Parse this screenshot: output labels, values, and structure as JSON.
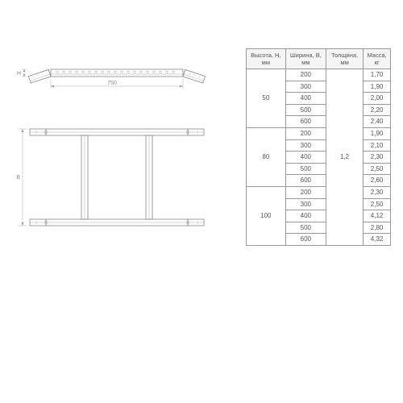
{
  "table": {
    "headers": [
      "Высота,\nH, мм",
      "Ширина,\nB, мм",
      "Толщина,\nмм",
      "Масса,\nкг"
    ],
    "thickness": "1,2",
    "groups": [
      {
        "height": "50",
        "rows": [
          {
            "width": "200",
            "mass": "1,70"
          },
          {
            "width": "300",
            "mass": "1,90"
          },
          {
            "width": "400",
            "mass": "2,00"
          },
          {
            "width": "500",
            "mass": "2,20"
          },
          {
            "width": "600",
            "mass": "2,40"
          }
        ]
      },
      {
        "height": "80",
        "rows": [
          {
            "width": "200",
            "mass": "1,90"
          },
          {
            "width": "300",
            "mass": "2,10"
          },
          {
            "width": "400",
            "mass": "2,30"
          },
          {
            "width": "500",
            "mass": "2,50"
          },
          {
            "width": "600",
            "mass": "2,60"
          }
        ]
      },
      {
        "height": "100",
        "rows": [
          {
            "width": "200",
            "mass": "2,30"
          },
          {
            "width": "300",
            "mass": "2,50"
          },
          {
            "width": "400",
            "mass": "4,12"
          },
          {
            "width": "500",
            "mass": "2,80"
          },
          {
            "width": "600",
            "mass": "4,32"
          }
        ]
      }
    ]
  },
  "drawing": {
    "topView": {
      "label_H": "H",
      "label_750": "750",
      "angle": 15
    },
    "frontView": {
      "label_B": "B"
    },
    "colors": {
      "line": "#888888",
      "thin": "#aaaaaa",
      "dim": "#999999"
    }
  }
}
